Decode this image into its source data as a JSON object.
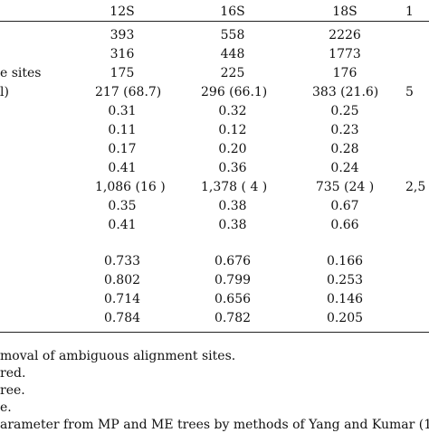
{
  "header": {
    "col_12s": "12S",
    "col_16s": "16S",
    "col_18s": "18S",
    "col_4": "1"
  },
  "row_labels": {
    "r2": "e sites",
    "r3": "l)"
  },
  "rows": [
    {
      "c1": "393",
      "c2": "558",
      "c3": "2226",
      "c4": ""
    },
    {
      "c1": "316",
      "c2": "448",
      "c3": "1773",
      "c4": ""
    },
    {
      "c1": "175",
      "c2": "225",
      "c3": "176",
      "c4": ""
    },
    {
      "c1": "217 (68.7)",
      "c2": "296 (66.1)",
      "c3": "383 (21.6)",
      "c4": "5"
    },
    {
      "c1": "0.31",
      "c2": "0.32",
      "c3": "0.25",
      "c4": ""
    },
    {
      "c1": "0.11",
      "c2": "0.12",
      "c3": "0.23",
      "c4": ""
    },
    {
      "c1": "0.17",
      "c2": "0.20",
      "c3": "0.28",
      "c4": ""
    },
    {
      "c1": "0.41",
      "c2": "0.36",
      "c3": "0.24",
      "c4": ""
    },
    {
      "c1": "1,086 (16   )",
      "c2": "1,378 (  4  )",
      "c3": "735 (24   )",
      "c4": "2,5"
    },
    {
      "c1": "0.35",
      "c2": "0.38",
      "c3": "0.67",
      "c4": ""
    },
    {
      "c1": "0.41",
      "c2": "0.38",
      "c3": "0.66",
      "c4": ""
    },
    {
      "c1": "0.733",
      "c2": "0.676",
      "c3": "0.166",
      "c4": ""
    },
    {
      "c1": "0.802",
      "c2": "0.799",
      "c3": "0.253",
      "c4": ""
    },
    {
      "c1": "0.714",
      "c2": "0.656",
      "c3": "0.146",
      "c4": ""
    },
    {
      "c1": "0.784",
      "c2": "0.782",
      "c3": "0.205",
      "c4": ""
    }
  ],
  "footnotes": [
    "moval of ambiguous alignment sites.",
    "red.",
    "ree.",
    "e.",
    "arameter from MP and ME trees by methods of Yang and Kumar (1"
  ]
}
